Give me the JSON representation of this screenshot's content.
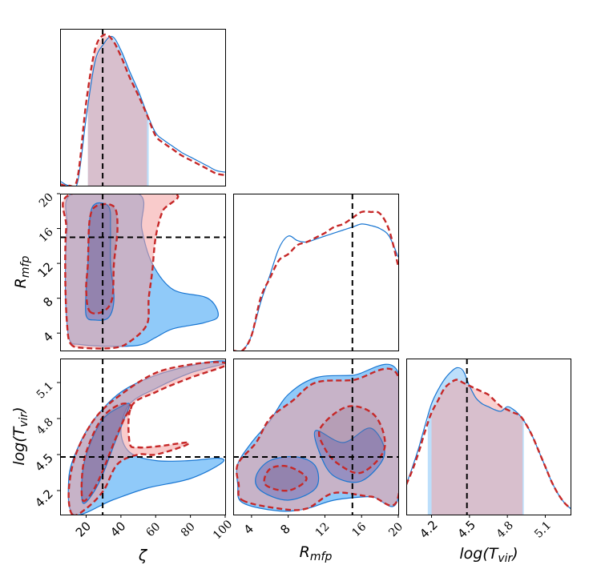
{
  "colors": {
    "blue_fill": "#2196f3",
    "blue_line": "#1976d2",
    "red_fill": "#f4a0a0",
    "red_line": "#c62828",
    "truth_line": "#000000",
    "overlap": "#9fa8da"
  },
  "chart_data": {
    "type": "corner",
    "parameters": [
      {
        "symbol": "ζ",
        "range": [
          5,
          100
        ],
        "truth": 29.5,
        "ticks": [
          "20",
          "40",
          "60",
          "80",
          "100"
        ],
        "tick_values": [
          20,
          40,
          60,
          80,
          100
        ]
      },
      {
        "symbol": "R_mfp",
        "label_main": "R",
        "label_sub": "mfp",
        "range": [
          2,
          20
        ],
        "truth": 15,
        "ticks": [
          "4",
          "8",
          "12",
          "16",
          "20"
        ],
        "tick_values": [
          4,
          8,
          12,
          16,
          20
        ]
      },
      {
        "symbol": "log(T_vir)",
        "label_main": "log(T",
        "label_sub": "vir",
        "label_end": ")",
        "range": [
          4.0,
          5.3
        ],
        "truth": 4.48,
        "ticks": [
          "4.2",
          "4.5",
          "4.8",
          "5.1"
        ],
        "tick_values": [
          4.2,
          4.5,
          4.8,
          5.1
        ]
      }
    ],
    "marginals": [
      {
        "param": "ζ",
        "blue": {
          "x": [
            5,
            10,
            15,
            20,
            25,
            30,
            35,
            40,
            45,
            50,
            55,
            60,
            65,
            70,
            75,
            80,
            85,
            90,
            95,
            100
          ],
          "y": [
            0.03,
            0.0,
            0.02,
            0.45,
            0.82,
            0.94,
            0.99,
            0.9,
            0.76,
            0.63,
            0.48,
            0.35,
            0.3,
            0.26,
            0.22,
            0.19,
            0.16,
            0.13,
            0.1,
            0.09
          ],
          "interval": [
            21,
            56
          ]
        },
        "red": {
          "x": [
            5,
            10,
            15,
            20,
            25,
            30,
            35,
            40,
            45,
            50,
            55,
            60,
            65,
            70,
            75,
            80,
            85,
            90,
            95,
            100
          ],
          "y": [
            0.01,
            0.0,
            0.05,
            0.55,
            0.9,
            1.0,
            0.97,
            0.86,
            0.72,
            0.6,
            0.47,
            0.33,
            0.28,
            0.24,
            0.2,
            0.17,
            0.14,
            0.11,
            0.08,
            0.07
          ],
          "interval": [
            21,
            55
          ]
        }
      },
      {
        "param": "R_mfp",
        "blue": {
          "x": [
            2,
            3,
            4,
            5,
            6,
            7,
            8,
            9,
            10,
            11,
            12,
            13,
            14,
            15,
            16,
            17,
            18,
            19,
            20
          ],
          "y": [
            0.0,
            0.0,
            0.1,
            0.32,
            0.5,
            0.68,
            0.76,
            0.73,
            0.72,
            0.74,
            0.76,
            0.78,
            0.8,
            0.82,
            0.84,
            0.83,
            0.81,
            0.76,
            0.62
          ]
        },
        "red": {
          "x": [
            2,
            3,
            4,
            5,
            6,
            7,
            8,
            9,
            10,
            11,
            12,
            13,
            14,
            15,
            16,
            17,
            18,
            19,
            20
          ],
          "y": [
            0.0,
            0.0,
            0.1,
            0.35,
            0.48,
            0.6,
            0.64,
            0.7,
            0.72,
            0.75,
            0.78,
            0.82,
            0.84,
            0.88,
            0.92,
            0.92,
            0.91,
            0.8,
            0.56
          ]
        }
      },
      {
        "param": "log(T_vir)",
        "blue": {
          "x": [
            4.0,
            4.05,
            4.1,
            4.15,
            4.2,
            4.25,
            4.3,
            4.35,
            4.4,
            4.45,
            4.5,
            4.55,
            4.6,
            4.65,
            4.7,
            4.75,
            4.8,
            4.85,
            4.9,
            4.95,
            5.0,
            5.05,
            5.1,
            5.15,
            5.2,
            5.25,
            5.3
          ],
          "y": [
            0.2,
            0.32,
            0.45,
            0.6,
            0.74,
            0.83,
            0.9,
            0.95,
            0.98,
            0.96,
            0.86,
            0.78,
            0.74,
            0.72,
            0.7,
            0.69,
            0.72,
            0.7,
            0.66,
            0.6,
            0.52,
            0.42,
            0.32,
            0.22,
            0.14,
            0.08,
            0.04
          ],
          "interval": [
            4.17,
            4.93
          ]
        },
        "red": {
          "x": [
            4.0,
            4.05,
            4.1,
            4.15,
            4.2,
            4.25,
            4.3,
            4.35,
            4.4,
            4.45,
            4.5,
            4.55,
            4.6,
            4.65,
            4.7,
            4.75,
            4.8,
            4.85,
            4.9,
            4.95,
            5.0,
            5.05,
            5.1,
            5.15,
            5.2,
            5.25,
            5.3
          ],
          "y": [
            0.2,
            0.3,
            0.42,
            0.56,
            0.68,
            0.76,
            0.84,
            0.88,
            0.9,
            0.88,
            0.86,
            0.84,
            0.82,
            0.8,
            0.76,
            0.72,
            0.7,
            0.68,
            0.66,
            0.6,
            0.52,
            0.42,
            0.32,
            0.22,
            0.14,
            0.08,
            0.04
          ],
          "interval": [
            4.2,
            4.92
          ]
        }
      }
    ],
    "joint": [
      {
        "x_param": "ζ",
        "y_param": "R_mfp",
        "blue_outer": [
          [
            11,
            3
          ],
          [
            16,
            2.7
          ],
          [
            30,
            2.5
          ],
          [
            50,
            2.6
          ],
          [
            60,
            3.5
          ],
          [
            70,
            4.5
          ],
          [
            88,
            5.2
          ],
          [
            96,
            6
          ],
          [
            90,
            8
          ],
          [
            70,
            9
          ],
          [
            58,
            12
          ],
          [
            52,
            16
          ],
          [
            50,
            20
          ],
          [
            12,
            20
          ],
          [
            9,
            16
          ],
          [
            8,
            10
          ],
          [
            9,
            5
          ]
        ],
        "blue_inner": [
          [
            20,
            6
          ],
          [
            25,
            5.5
          ],
          [
            33,
            5.8
          ],
          [
            36,
            8
          ],
          [
            34,
            12
          ],
          [
            34,
            16
          ],
          [
            33,
            18.5
          ],
          [
            25,
            18.8
          ],
          [
            22,
            17
          ],
          [
            21,
            12
          ],
          [
            20,
            9
          ]
        ],
        "red_outer": [
          [
            11,
            2.8
          ],
          [
            18,
            2.3
          ],
          [
            36,
            2.3
          ],
          [
            45,
            3
          ],
          [
            55,
            5
          ],
          [
            56,
            8
          ],
          [
            58,
            11
          ],
          [
            60,
            15
          ],
          [
            64,
            18
          ],
          [
            70,
            20
          ],
          [
            12,
            20
          ],
          [
            8.5,
            16
          ],
          [
            8,
            10
          ],
          [
            9,
            5
          ]
        ],
        "red_inner": [
          [
            22,
            6.5
          ],
          [
            30,
            6.5
          ],
          [
            35,
            8
          ],
          [
            36,
            12
          ],
          [
            38,
            16
          ],
          [
            36,
            18.5
          ],
          [
            26,
            18.6
          ],
          [
            22,
            17
          ],
          [
            21,
            12
          ],
          [
            20,
            9
          ]
        ]
      },
      {
        "x_param": "ζ",
        "y_param": "log(T_vir)",
        "blue_outer": [
          [
            13,
            4.0
          ],
          [
            35,
            4.12
          ],
          [
            55,
            4.22
          ],
          [
            80,
            4.3
          ],
          [
            98,
            4.43
          ],
          [
            96,
            4.47
          ],
          [
            80,
            4.45
          ],
          [
            60,
            4.45
          ],
          [
            45,
            4.52
          ],
          [
            40,
            4.7
          ],
          [
            45,
            4.92
          ],
          [
            60,
            5.05
          ],
          [
            80,
            5.18
          ],
          [
            100,
            5.26
          ],
          [
            96,
            5.28
          ],
          [
            80,
            5.24
          ],
          [
            60,
            5.16
          ],
          [
            40,
            5.02
          ],
          [
            25,
            4.8
          ],
          [
            15,
            4.55
          ],
          [
            10,
            4.3
          ]
        ],
        "blue_inner": [
          [
            18,
            4.1
          ],
          [
            24,
            4.18
          ],
          [
            30,
            4.35
          ],
          [
            36,
            4.58
          ],
          [
            42,
            4.8
          ],
          [
            45,
            4.92
          ],
          [
            40,
            4.9
          ],
          [
            30,
            4.8
          ],
          [
            22,
            4.58
          ],
          [
            18,
            4.36
          ]
        ],
        "red_outer": [
          [
            12,
            4.0
          ],
          [
            20,
            4.05
          ],
          [
            30,
            4.2
          ],
          [
            38,
            4.42
          ],
          [
            50,
            4.5
          ],
          [
            60,
            4.5
          ],
          [
            76,
            4.57
          ],
          [
            78,
            4.6
          ],
          [
            62,
            4.57
          ],
          [
            50,
            4.56
          ],
          [
            45,
            4.6
          ],
          [
            46,
            4.9
          ],
          [
            60,
            5.02
          ],
          [
            80,
            5.14
          ],
          [
            100,
            5.24
          ],
          [
            96,
            5.27
          ],
          [
            80,
            5.25
          ],
          [
            60,
            5.18
          ],
          [
            40,
            5.0
          ],
          [
            25,
            4.8
          ],
          [
            14,
            4.5
          ],
          [
            10,
            4.2
          ]
        ],
        "red_inner": [
          [
            18,
            4.12
          ],
          [
            24,
            4.2
          ],
          [
            30,
            4.38
          ],
          [
            36,
            4.6
          ],
          [
            42,
            4.8
          ],
          [
            46,
            4.9
          ],
          [
            40,
            4.92
          ],
          [
            30,
            4.82
          ],
          [
            22,
            4.6
          ],
          [
            18,
            4.38
          ]
        ]
      },
      {
        "x_param": "R_mfp",
        "y_param": "log(T_vir)",
        "blue_outer": [
          [
            3,
            4.1
          ],
          [
            7,
            4.03
          ],
          [
            10,
            4.05
          ],
          [
            13,
            4.12
          ],
          [
            17,
            4.15
          ],
          [
            20,
            4.14
          ],
          [
            20,
            5.18
          ],
          [
            15,
            5.16
          ],
          [
            11,
            5.14
          ],
          [
            8,
            5.0
          ],
          [
            6,
            4.78
          ],
          [
            4,
            4.6
          ],
          [
            2.5,
            4.42
          ],
          [
            2.5,
            4.25
          ]
        ],
        "blue_inner": [
          [
            5,
            4.2
          ],
          [
            8,
            4.12
          ],
          [
            11,
            4.22
          ],
          [
            11,
            4.4
          ],
          [
            9,
            4.48
          ],
          [
            6,
            4.45
          ],
          [
            4.5,
            4.32
          ]
        ],
        "blue_inner2": [
          [
            11,
            4.7
          ],
          [
            14,
            4.6
          ],
          [
            17,
            4.72
          ],
          [
            18.5,
            4.5
          ],
          [
            16,
            4.28
          ],
          [
            13,
            4.32
          ],
          [
            11.5,
            4.5
          ]
        ],
        "red_outer": [
          [
            3,
            4.12
          ],
          [
            7,
            4.05
          ],
          [
            10,
            4.05
          ],
          [
            13,
            4.18
          ],
          [
            17,
            4.15
          ],
          [
            20,
            4.15
          ],
          [
            20,
            5.15
          ],
          [
            15,
            5.12
          ],
          [
            11,
            5.1
          ],
          [
            8.5,
            4.95
          ],
          [
            6,
            4.8
          ],
          [
            4.5,
            4.6
          ],
          [
            2.5,
            4.42
          ],
          [
            2.6,
            4.25
          ]
        ],
        "red_inner": [
          [
            5.5,
            4.25
          ],
          [
            8,
            4.2
          ],
          [
            10,
            4.3
          ],
          [
            8,
            4.4
          ],
          [
            6,
            4.38
          ]
        ],
        "red_inner2": [
          [
            11.5,
            4.72
          ],
          [
            14.5,
            4.9
          ],
          [
            17.5,
            4.82
          ],
          [
            18.5,
            4.55
          ],
          [
            16,
            4.35
          ],
          [
            13.5,
            4.42
          ],
          [
            12,
            4.55
          ]
        ]
      }
    ]
  }
}
